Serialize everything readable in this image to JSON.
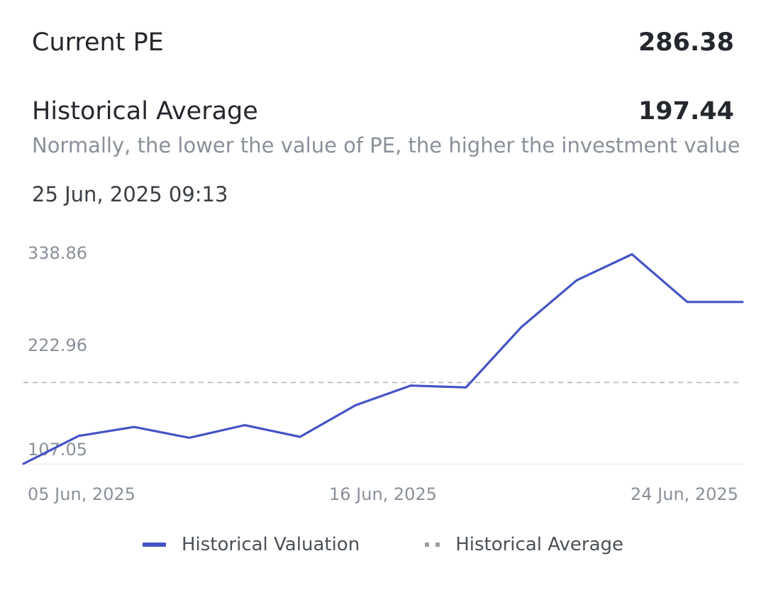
{
  "metrics": {
    "current_pe_label": "Current PE",
    "current_pe_value": "286.38",
    "historical_avg_label": "Historical Average",
    "historical_avg_value": "197.44",
    "note": "Normally, the lower the value of PE, the higher the investment value",
    "timestamp": "25 Jun, 2025 09:13"
  },
  "colors": {
    "line": "#4453c5",
    "average_line": "#b8bcc2",
    "axis_text": "#8a9099",
    "baseline": "#eceef1"
  },
  "chart_data": {
    "type": "line",
    "y_ticks": [
      "338.86",
      "222.96",
      "107.05"
    ],
    "x_tick_labels": [
      "05 Jun, 2025",
      "16 Jun, 2025",
      "24 Jun, 2025"
    ],
    "ylim": [
      107.05,
      338.86
    ],
    "grid": false,
    "legend_position": "bottom",
    "average": 197.44,
    "series": [
      {
        "name": "Historical Valuation",
        "values": [
          107.05,
          138.0,
          148.0,
          136.0,
          150.0,
          137.0,
          172.0,
          194.0,
          192.0,
          259.0,
          311.0,
          340.0,
          287.0,
          287.0
        ]
      }
    ],
    "legend": [
      "Historical Valuation",
      "Historical Average"
    ]
  }
}
